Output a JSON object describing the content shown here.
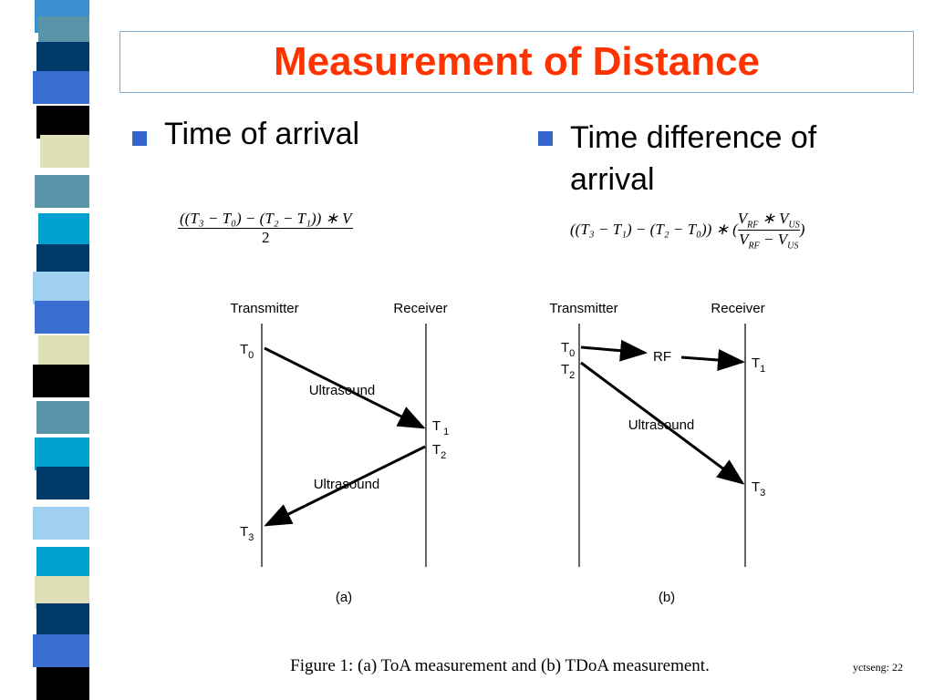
{
  "title": "Measurement of Distance",
  "bullets": [
    "Time of arrival",
    "Time difference of arrival"
  ],
  "formula_a": {
    "numerator": "((T₃ − T₀) − (T₂ − T₁)) ∗ V",
    "denominator": "2"
  },
  "formula_b": {
    "prefix": "((T₃ − T₁) − (T₂ − T₀)) ∗ (",
    "numerator": [
      "V",
      "RF",
      " ∗ V",
      "US"
    ],
    "denominator": [
      "V",
      "RF",
      " − V",
      "US"
    ],
    "suffix": ")"
  },
  "diagrams": [
    {
      "transmitter": "Transmitter",
      "receiver": "Receiver",
      "events": [
        {
          "t": "T",
          "sub": "0"
        },
        {
          "t": "T",
          "sub": "1"
        },
        {
          "t": "T",
          "sub": "2"
        },
        {
          "t": "T",
          "sub": "3"
        }
      ],
      "arrow_labels": [
        "Ultrasound",
        "Ultrasound"
      ],
      "caption": "(a)"
    },
    {
      "transmitter": "Transmitter",
      "receiver": "Receiver",
      "events": [
        {
          "t": "T",
          "sub": "0"
        },
        {
          "t": "T",
          "sub": "2"
        },
        {
          "t": "T",
          "sub": "1"
        },
        {
          "t": "T",
          "sub": "3"
        }
      ],
      "arrow_labels": [
        "RF",
        "Ultrasound"
      ],
      "caption": "(b)"
    }
  ],
  "figure_caption": "Figure 1: (a) ToA measurement and (b) TDoA measurement.",
  "footer": "yctseng: 22"
}
